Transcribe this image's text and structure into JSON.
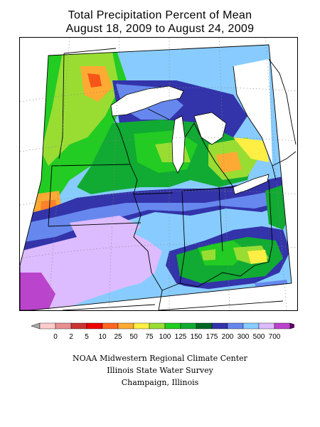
{
  "title": {
    "line1": "Total Precipitation Percent of Mean",
    "line2": "August 18, 2009 to August 24, 2009"
  },
  "map": {
    "region": "Midwest United States",
    "colors": {
      "land_bg": "#99ccff",
      "lake_water": "#ffffff",
      "state_lines": "#000000",
      "graticule": "#888888"
    }
  },
  "legend": {
    "bins": [
      {
        "label": "0",
        "color": "#ffcccc"
      },
      {
        "label": "2",
        "color": "#e89090"
      },
      {
        "label": "5",
        "color": "#cc3333"
      },
      {
        "label": "10",
        "color": "#ee0000"
      },
      {
        "label": "25",
        "color": "#ff6622"
      },
      {
        "label": "50",
        "color": "#ffaa33"
      },
      {
        "label": "75",
        "color": "#ffee44"
      },
      {
        "label": "100",
        "color": "#99dd33"
      },
      {
        "label": "125",
        "color": "#22cc22"
      },
      {
        "label": "150",
        "color": "#11aa33"
      },
      {
        "label": "175",
        "color": "#006622"
      },
      {
        "label": "200",
        "color": "#3333aa"
      },
      {
        "label": "300",
        "color": "#6688ee"
      },
      {
        "label": "500",
        "color": "#88ccff"
      },
      {
        "label": "700",
        "color": "#ddbbff"
      }
    ],
    "end_left_color": "#aaaaaa",
    "end_right_color": "#660066",
    "extra_swatch_color": "#bb44cc"
  },
  "credits": {
    "line1": "NOAA Midwestern Regional Climate Center",
    "line2": "Illinois State Water Survey",
    "line3": "Champaign, Illinois"
  }
}
